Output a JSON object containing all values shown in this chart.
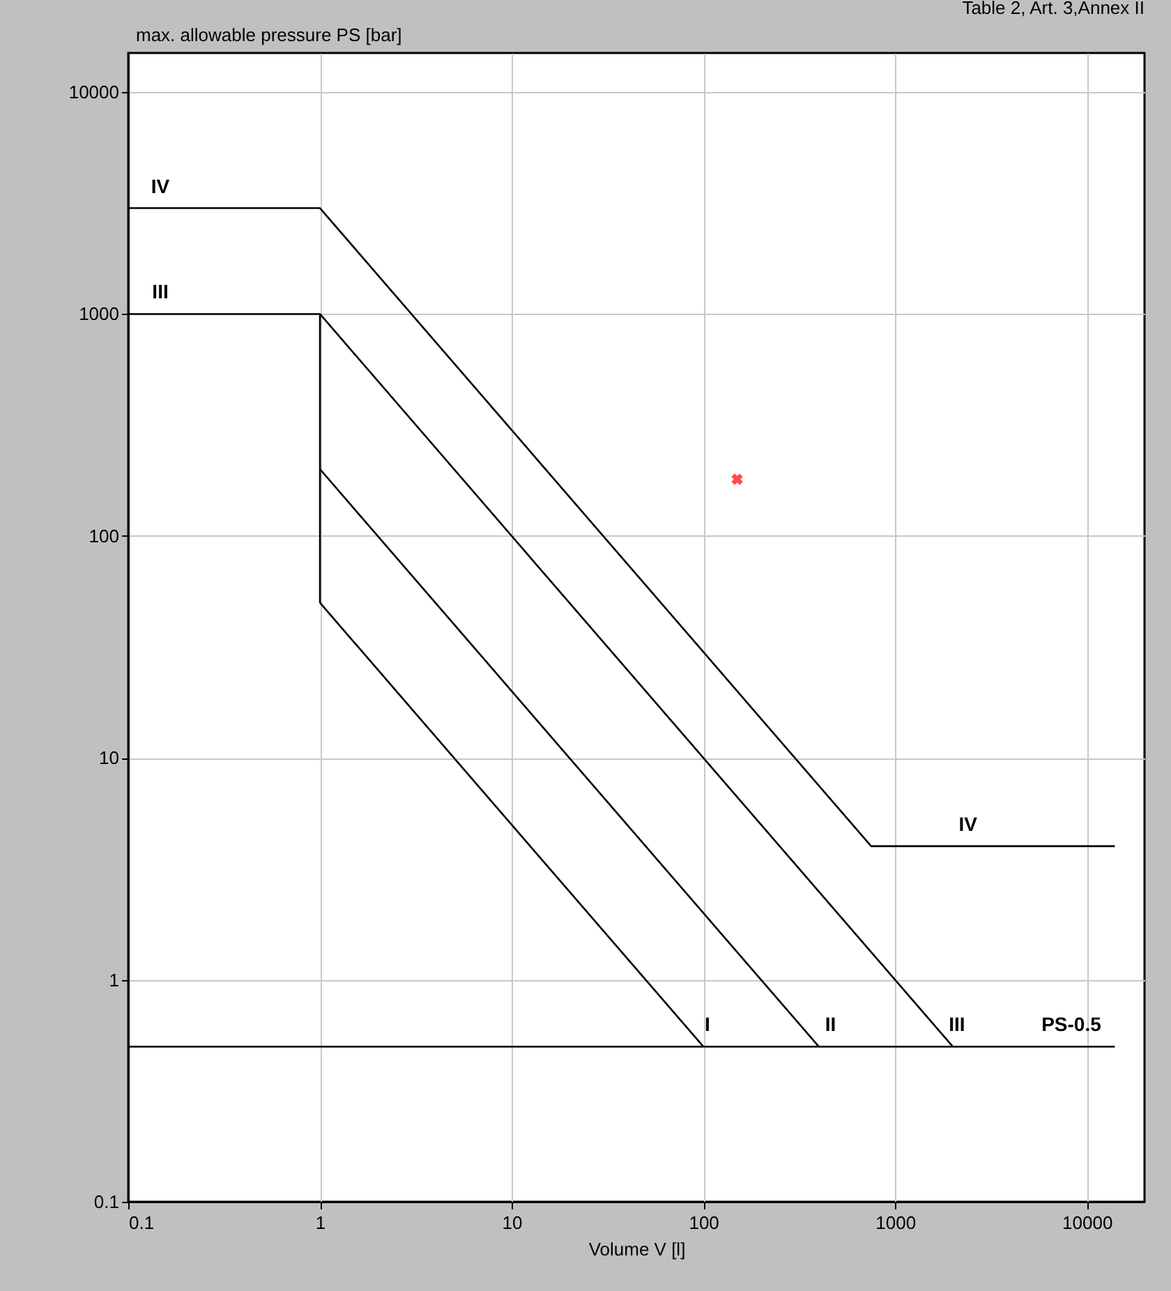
{
  "chart_data": {
    "type": "line",
    "title": "Table 2, Art. 3,Annex II",
    "xlabel": "Volume V [l]",
    "ylabel": "max. allowable pressure PS [bar]",
    "log": "xy",
    "grid": true,
    "legend": false,
    "line_style": "solid",
    "xlim": [
      0.1,
      20000
    ],
    "xticks": [
      0.1,
      1,
      10,
      100,
      1000,
      10000
    ],
    "ylim": [
      0.1,
      15000
    ],
    "yticks": [
      0.1,
      1,
      10,
      100,
      1000,
      10000
    ],
    "series": [
      {
        "color": "#000000",
        "x": [
          1,
          100
        ],
        "values": [
          50,
          0.5
        ]
      },
      {
        "color": "#000000",
        "x": [
          1,
          400
        ],
        "values": [
          200,
          0.5
        ]
      },
      {
        "color": "#000000",
        "x": [
          0.1,
          1,
          2000
        ],
        "values": [
          1000,
          1000,
          0.5
        ]
      },
      {
        "color": "#000000",
        "x": [
          1,
          1
        ],
        "values": [
          1000,
          50
        ]
      },
      {
        "color": "#000000",
        "x": [
          0.1,
          1,
          750,
          14000
        ],
        "values": [
          3000,
          3000,
          4,
          4
        ]
      },
      {
        "color": "#000000",
        "x": [
          0.1,
          14000
        ],
        "values": [
          0.5,
          0.5
        ]
      },
      {
        "type": "scatter",
        "marker": "cross",
        "color": "#ff0000",
        "x": [
          150
        ],
        "values": [
          180
        ]
      }
    ],
    "annotations": [
      {
        "text": "IV",
        "x": 0.147,
        "y": 3000
      },
      {
        "text": "III",
        "x": 0.147,
        "y": 1000
      },
      {
        "text": "I",
        "x": 105,
        "y": 0.5
      },
      {
        "text": "II",
        "x": 460,
        "y": 0.5
      },
      {
        "text": "III",
        "x": 2100,
        "y": 0.5
      },
      {
        "text": "PS-0.5",
        "x": 8300,
        "y": 0.5
      },
      {
        "text": "IV",
        "x": 2400,
        "y": 4
      }
    ]
  }
}
